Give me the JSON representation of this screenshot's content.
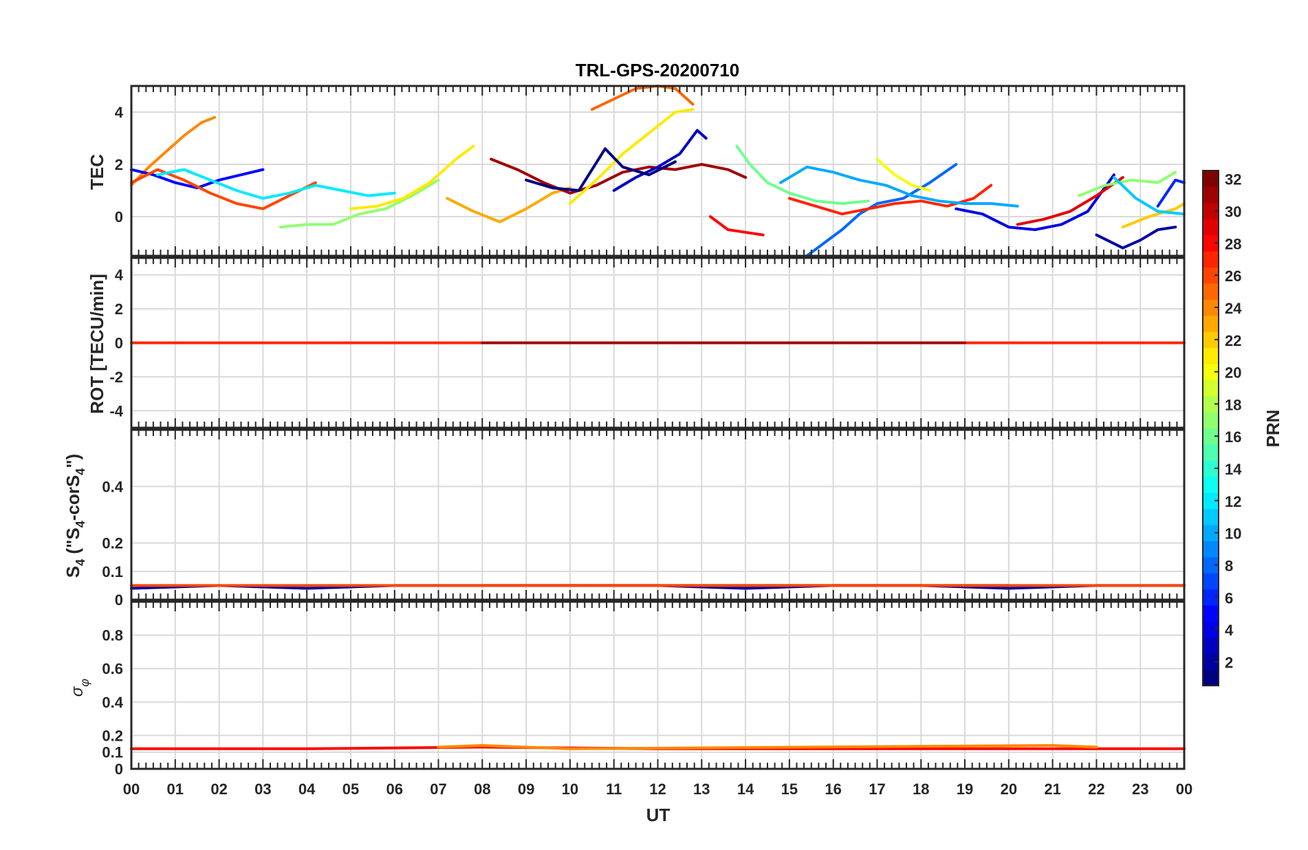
{
  "title": "TRL-GPS-20200710",
  "xlabel": "UT",
  "x_ticks": [
    "00",
    "01",
    "02",
    "03",
    "04",
    "05",
    "06",
    "07",
    "08",
    "09",
    "10",
    "11",
    "12",
    "13",
    "14",
    "15",
    "16",
    "17",
    "18",
    "19",
    "20",
    "21",
    "22",
    "23",
    "00"
  ],
  "colorbar": {
    "label": "PRN",
    "range": [
      1,
      32
    ],
    "ticks": [
      "2",
      "4",
      "6",
      "8",
      "10",
      "12",
      "14",
      "16",
      "18",
      "20",
      "22",
      "24",
      "26",
      "28",
      "30",
      "32"
    ],
    "colormap": "jet"
  },
  "chart_data": [
    {
      "type": "line",
      "panel": "tec",
      "ylabel": "TEC",
      "ylim": [
        -1.5,
        5
      ],
      "yticks": [
        "0",
        "2",
        "4"
      ],
      "xlim": [
        0,
        24
      ],
      "series": [
        {
          "prn": 24,
          "x": [
            0.0,
            0.4,
            0.8,
            1.2,
            1.6,
            1.9
          ],
          "values": [
            1.2,
            1.9,
            2.5,
            3.1,
            3.6,
            3.8
          ]
        },
        {
          "prn": 5,
          "x": [
            0.0,
            0.5,
            1.0,
            1.5,
            2.0,
            2.5,
            3.0
          ],
          "values": [
            1.8,
            1.6,
            1.3,
            1.1,
            1.4,
            1.6,
            1.8
          ]
        },
        {
          "prn": 26,
          "x": [
            0.0,
            0.6,
            1.2,
            1.8,
            2.4,
            3.0,
            3.6,
            4.2
          ],
          "values": [
            1.3,
            1.8,
            1.4,
            0.9,
            0.5,
            0.3,
            0.8,
            1.3
          ]
        },
        {
          "prn": 12,
          "x": [
            0.6,
            1.2,
            1.8,
            2.4,
            3.0,
            3.6,
            4.2,
            4.8,
            5.4,
            6.0
          ],
          "values": [
            1.6,
            1.8,
            1.4,
            1.0,
            0.7,
            0.9,
            1.2,
            1.0,
            0.8,
            0.9
          ]
        },
        {
          "prn": 17,
          "x": [
            3.4,
            4.0,
            4.6,
            5.2,
            5.8,
            6.4,
            7.0
          ],
          "values": [
            -0.4,
            -0.3,
            -0.3,
            0.1,
            0.3,
            0.8,
            1.4
          ]
        },
        {
          "prn": 21,
          "x": [
            5.0,
            5.6,
            6.2,
            6.8,
            7.4,
            7.8
          ],
          "values": [
            0.3,
            0.4,
            0.7,
            1.3,
            2.2,
            2.7
          ]
        },
        {
          "prn": 23,
          "x": [
            7.2,
            7.8,
            8.4,
            9.0,
            9.6,
            10.0
          ],
          "values": [
            0.7,
            0.2,
            -0.2,
            0.3,
            0.9,
            1.1
          ]
        },
        {
          "prn": 31,
          "x": [
            8.2,
            8.8,
            9.4,
            10.0,
            10.6,
            11.2,
            11.8,
            12.4,
            13.0,
            13.6,
            14.0
          ],
          "values": [
            2.2,
            1.8,
            1.3,
            0.9,
            1.2,
            1.7,
            1.9,
            1.8,
            2.0,
            1.8,
            1.5
          ]
        },
        {
          "prn": 25,
          "x": [
            10.5,
            11.0,
            11.5,
            12.0,
            12.4,
            12.8
          ],
          "values": [
            4.1,
            4.5,
            4.9,
            5.0,
            4.9,
            4.3
          ]
        },
        {
          "prn": 21,
          "x": [
            10.0,
            10.6,
            11.2,
            11.8,
            12.4,
            12.8
          ],
          "values": [
            0.5,
            1.4,
            2.4,
            3.2,
            4.0,
            4.1
          ]
        },
        {
          "prn": 3,
          "x": [
            11.0,
            11.5,
            12.0,
            12.5,
            12.9,
            13.1
          ],
          "values": [
            1.0,
            1.5,
            1.9,
            2.4,
            3.3,
            3.0
          ]
        },
        {
          "prn": 1,
          "x": [
            9.0,
            9.6,
            10.2,
            10.8,
            11.2,
            11.8,
            12.4
          ],
          "values": [
            1.4,
            1.1,
            1.0,
            2.6,
            1.9,
            1.6,
            2.1
          ]
        },
        {
          "prn": 16,
          "x": [
            13.8,
            14.1,
            14.5,
            15.0,
            15.6,
            16.2,
            16.8
          ],
          "values": [
            2.7,
            2.0,
            1.3,
            0.9,
            0.6,
            0.5,
            0.6
          ]
        },
        {
          "prn": 28,
          "x": [
            13.2,
            13.6,
            14.0,
            14.4
          ],
          "values": [
            0.0,
            -0.5,
            -0.6,
            -0.7
          ]
        },
        {
          "prn": 8,
          "x": [
            15.4,
            15.8,
            16.2,
            16.6,
            17.0,
            17.6,
            18.2,
            18.8
          ],
          "values": [
            -1.5,
            -1.0,
            -0.5,
            0.1,
            0.5,
            0.7,
            1.3,
            2.0
          ]
        },
        {
          "prn": 27,
          "x": [
            15.0,
            15.6,
            16.2,
            16.8,
            17.4,
            18.0,
            18.6,
            19.2,
            19.6
          ],
          "values": [
            0.7,
            0.4,
            0.1,
            0.3,
            0.5,
            0.6,
            0.4,
            0.7,
            1.2
          ]
        },
        {
          "prn": 10,
          "x": [
            14.8,
            15.4,
            16.0,
            16.6,
            17.2,
            17.8,
            18.4,
            19.0,
            19.6,
            20.2
          ],
          "values": [
            1.3,
            1.9,
            1.7,
            1.4,
            1.2,
            0.8,
            0.6,
            0.5,
            0.5,
            0.4
          ]
        },
        {
          "prn": 20,
          "x": [
            17.0,
            17.4,
            17.8,
            18.2
          ],
          "values": [
            2.2,
            1.6,
            1.2,
            1.0
          ]
        },
        {
          "prn": 4,
          "x": [
            18.8,
            19.4,
            20.0,
            20.6,
            21.2,
            21.8,
            22.4
          ],
          "values": [
            0.3,
            0.1,
            -0.4,
            -0.5,
            -0.3,
            0.2,
            1.6
          ]
        },
        {
          "prn": 29,
          "x": [
            20.2,
            20.8,
            21.4,
            22.0,
            22.6
          ],
          "values": [
            -0.3,
            -0.1,
            0.2,
            0.8,
            1.5
          ]
        },
        {
          "prn": 17,
          "x": [
            21.6,
            22.2,
            22.8,
            23.4,
            23.8
          ],
          "values": [
            0.8,
            1.2,
            1.4,
            1.3,
            1.7
          ]
        },
        {
          "prn": 2,
          "x": [
            22.0,
            22.6,
            23.0,
            23.4,
            23.8
          ],
          "values": [
            -0.7,
            -1.2,
            -0.9,
            -0.5,
            -0.4
          ]
        },
        {
          "prn": 22,
          "x": [
            22.6,
            23.2,
            23.8,
            24.0
          ],
          "values": [
            -0.4,
            0.0,
            0.3,
            0.5
          ]
        },
        {
          "prn": 11,
          "x": [
            22.4,
            22.9,
            23.4,
            24.0
          ],
          "values": [
            1.5,
            0.7,
            0.2,
            0.1
          ]
        },
        {
          "prn": 6,
          "x": [
            23.4,
            23.8,
            24.0
          ],
          "values": [
            0.4,
            1.4,
            1.3
          ]
        }
      ]
    },
    {
      "type": "line",
      "panel": "rot",
      "ylabel": "ROT [TECU/min]",
      "ylim": [
        -5,
        5
      ],
      "yticks": [
        "-4",
        "-2",
        "0",
        "2",
        "4"
      ],
      "xlim": [
        0,
        24
      ],
      "series": [
        {
          "prn": 27,
          "x": [
            0,
            4,
            8,
            12,
            16,
            20,
            24
          ],
          "values": [
            0,
            0,
            0,
            0,
            0,
            0,
            0
          ]
        },
        {
          "prn": 31,
          "x": [
            8,
            12,
            16,
            19
          ],
          "values": [
            0,
            0,
            0,
            0
          ]
        }
      ]
    },
    {
      "type": "line",
      "panel": "s4",
      "ylabel": "S4 (\"S4-corS4\")",
      "ylim": [
        0,
        0.6
      ],
      "yticks": [
        "0",
        "0.1",
        "0.2",
        "0.4"
      ],
      "xlim": [
        0,
        24
      ],
      "series": [
        {
          "prn": 2,
          "x": [
            0,
            2,
            4,
            6,
            8,
            10,
            12,
            14,
            16,
            18,
            20,
            22,
            24
          ],
          "values": [
            0.04,
            0.05,
            0.04,
            0.05,
            0.05,
            0.05,
            0.05,
            0.04,
            0.05,
            0.05,
            0.04,
            0.05,
            0.05
          ]
        },
        {
          "prn": 31,
          "x": [
            8,
            10,
            12,
            14,
            16,
            18,
            20
          ],
          "values": [
            0.05,
            0.05,
            0.05,
            0.05,
            0.05,
            0.05,
            0.05
          ]
        },
        {
          "prn": 26,
          "x": [
            0,
            4,
            8,
            12,
            16,
            20,
            24
          ],
          "values": [
            0.05,
            0.05,
            0.05,
            0.05,
            0.05,
            0.05,
            0.05
          ]
        }
      ]
    },
    {
      "type": "line",
      "panel": "sigma_phi",
      "ylabel": "σφ",
      "ylim": [
        0,
        1
      ],
      "yticks": [
        "0",
        "0.1",
        "0.2",
        "0.4",
        "0.6",
        "0.8"
      ],
      "xlim": [
        0,
        24
      ],
      "series": [
        {
          "prn": 28,
          "x": [
            0,
            4,
            8,
            12,
            16,
            20,
            24
          ],
          "values": [
            0.12,
            0.12,
            0.13,
            0.12,
            0.12,
            0.12,
            0.12
          ]
        },
        {
          "prn": 24,
          "x": [
            7,
            8,
            9,
            10,
            21,
            22
          ],
          "values": [
            0.13,
            0.14,
            0.13,
            0.12,
            0.14,
            0.13
          ]
        }
      ]
    }
  ]
}
